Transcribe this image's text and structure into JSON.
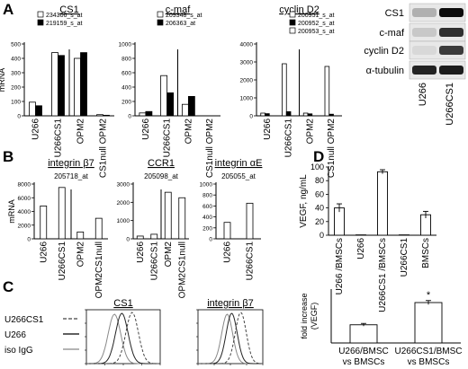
{
  "panels": {
    "A": "A",
    "B": "B",
    "C": "C",
    "D": "D"
  },
  "chart_data": [
    {
      "id": "A-CS1",
      "type": "bar",
      "title": "CS1",
      "ylabel": "mRNA",
      "categories": [
        "U266",
        "U266CS1",
        "OPM2",
        "CS1null OPM2"
      ],
      "ylim": [
        0,
        500
      ],
      "yticks": [
        0,
        100,
        200,
        300,
        400,
        500
      ],
      "series": [
        {
          "name": "234306_s_at",
          "fill": "#ffffff",
          "values": [
            95,
            440,
            400,
            8
          ]
        },
        {
          "name": "219159_s_at",
          "fill": "#000000",
          "values": [
            70,
            420,
            440,
            4
          ]
        }
      ]
    },
    {
      "id": "A-cmaf",
      "type": "bar",
      "title": "c-maf",
      "categories": [
        "U266",
        "U266CS1",
        "OPM2",
        "CS1null OPM2"
      ],
      "ylim": [
        0,
        1000
      ],
      "yticks": [
        0,
        200,
        400,
        600,
        800,
        1000
      ],
      "series": [
        {
          "name": "209348_s_at",
          "fill": "#ffffff",
          "values": [
            40,
            560,
            160,
            0
          ]
        },
        {
          "name": "206363_at",
          "fill": "#000000",
          "values": [
            60,
            320,
            270,
            0
          ]
        }
      ]
    },
    {
      "id": "A-cyclinD2",
      "type": "bar",
      "title": "cyclin D2",
      "categories": [
        "U266",
        "U266CS1",
        "OPM2",
        "CS1null OPM2"
      ],
      "ylim": [
        0,
        4000
      ],
      "yticks": [
        0,
        1000,
        2000,
        3000,
        4000
      ],
      "series": [
        {
          "name": "200951_s_at",
          "fill": "#ffffff",
          "values": [
            150,
            2900,
            150,
            2750
          ]
        },
        {
          "name": "200952_s_at",
          "fill": "#000000",
          "values": [
            120,
            230,
            110,
            90
          ]
        },
        {
          "name": "200953_s_at",
          "fill": "#ffffff",
          "values": [
            0,
            0,
            0,
            0
          ]
        }
      ]
    },
    {
      "id": "B-integrinB7",
      "type": "bar",
      "title": "integrin β7",
      "subtitle": "205718_at",
      "ylabel": "mRNA",
      "categories": [
        "U266",
        "U266CS1",
        "OPM2",
        "OPM2CS1null"
      ],
      "ylim": [
        0,
        8000
      ],
      "yticks": [
        0,
        2000,
        4000,
        6000,
        8000
      ],
      "series": [
        {
          "name": "205718_at",
          "fill": "#ffffff",
          "values": [
            4800,
            7500,
            1000,
            3000
          ]
        }
      ]
    },
    {
      "id": "B-CCR1",
      "type": "bar",
      "title": "CCR1",
      "subtitle": "205098_at",
      "categories": [
        "U266",
        "U266CS1",
        "OPM2",
        "OPM2CS1null"
      ],
      "ylim": [
        0,
        3000
      ],
      "yticks": [
        0,
        1000,
        2000,
        3000
      ],
      "series": [
        {
          "name": "205098_at",
          "fill": "#ffffff",
          "values": [
            150,
            250,
            2550,
            2250
          ]
        }
      ]
    },
    {
      "id": "B-integrinaE",
      "type": "bar",
      "title": "integrin αE",
      "subtitle": "205055_at",
      "categories": [
        "U266",
        "U266CS1"
      ],
      "ylim": [
        0,
        1000
      ],
      "yticks": [
        0,
        200,
        400,
        600,
        800,
        1000
      ],
      "series": [
        {
          "name": "205055_at",
          "fill": "#ffffff",
          "values": [
            300,
            650
          ]
        }
      ]
    },
    {
      "id": "C-CS1",
      "type": "line",
      "title": "CS1",
      "legend": [
        "U266CS1",
        "U266",
        "iso IgG"
      ]
    },
    {
      "id": "C-integrinB7",
      "type": "line",
      "title": "integrin β7"
    },
    {
      "id": "D-VEGF",
      "type": "bar",
      "ylabel": "VEGF, ng/mL",
      "categories": [
        "U266 /BMSCs",
        "U266",
        "U266CS1 /BMSCs",
        "U266CS1",
        "BMSCs"
      ],
      "ylim": [
        0,
        100
      ],
      "yticks": [
        0,
        20,
        40,
        60,
        80,
        100
      ],
      "series": [
        {
          "fill": "#ffffff",
          "values": [
            40,
            0.5,
            93,
            0.5,
            30
          ],
          "errors": [
            6,
            0,
            3,
            0,
            5
          ]
        }
      ]
    },
    {
      "id": "D-fold",
      "type": "bar",
      "ylabel": "fold increase (VEGF)",
      "categories": [
        "U266/BMSC vs BMSCs",
        "U266CS1/BMSC vs BMSCs"
      ],
      "ylim": [
        0,
        4
      ],
      "series": [
        {
          "fill": "#ffffff",
          "values": [
            1.35,
            3.0
          ],
          "errors": [
            0.1,
            0.15
          ]
        }
      ],
      "annotations": [
        "*"
      ]
    }
  ],
  "blot": {
    "columns": [
      "U266",
      "U266CS1"
    ],
    "rows": [
      "CS1",
      "c-maf",
      "cyclin D2",
      "α-tubulin"
    ]
  }
}
